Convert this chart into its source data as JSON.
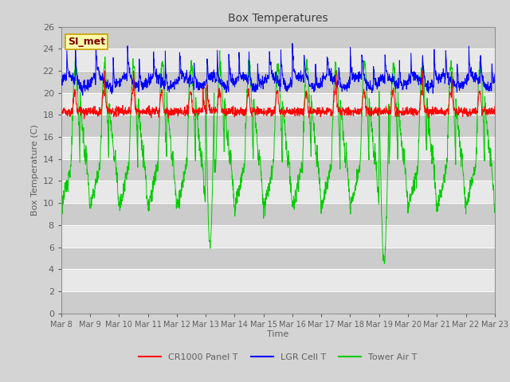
{
  "title": "Box Temperatures",
  "ylabel": "Box Temperature (C)",
  "xlabel": "Time",
  "ylim": [
    0,
    26
  ],
  "yticks": [
    0,
    2,
    4,
    6,
    8,
    10,
    12,
    14,
    16,
    18,
    20,
    22,
    24,
    26
  ],
  "xtick_labels": [
    "Mar 8",
    "Mar 9",
    "Mar 10",
    "Mar 11",
    "Mar 12",
    "Mar 13",
    "Mar 14",
    "Mar 15",
    "Mar 16",
    "Mar 17",
    "Mar 18",
    "Mar 19",
    "Mar 20",
    "Mar 21",
    "Mar 22",
    "Mar 23"
  ],
  "legend_labels": [
    "CR1000 Panel T",
    "LGR Cell T",
    "Tower Air T"
  ],
  "legend_colors": [
    "#ff0000",
    "#0000ff",
    "#00cc00"
  ],
  "watermark_text": "SI_met",
  "watermark_bg": "#ffffaa",
  "watermark_fg": "#800000",
  "watermark_edge": "#c8a000",
  "fig_bg": "#d4d4d4",
  "plot_bg": "#e8e8e8",
  "band_color": "#cccccc",
  "title_color": "#404040",
  "axis_label_color": "#606060",
  "tick_color": "#606060",
  "n_points": 2000,
  "days": 15,
  "tower_base": 17.5,
  "tower_amp": 8.5,
  "lgr_base": 21.0,
  "cr1000_base": 18.3
}
